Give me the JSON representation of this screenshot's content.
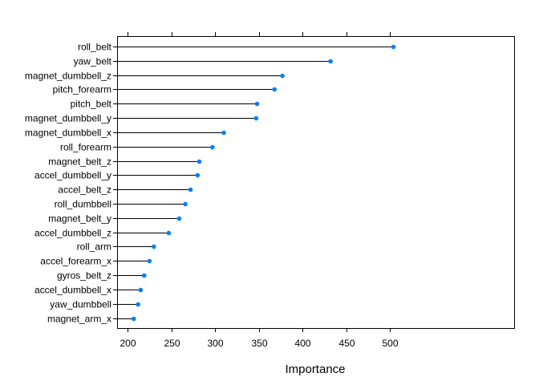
{
  "chart_data": {
    "type": "dot",
    "title": "",
    "xlabel": "Importance",
    "ylabel": "",
    "xlim": [
      188,
      642
    ],
    "xticks": [
      200,
      250,
      300,
      350,
      400,
      450,
      500
    ],
    "xtick_labels": [
      "200",
      "250",
      "300",
      "350",
      "400",
      "450",
      "500"
    ],
    "grid": false,
    "marker_color": "#0080ff",
    "line_color": "#000000",
    "categories": [
      "roll_belt",
      "yaw_belt",
      "magnet_dumbbell_z",
      "pitch_forearm",
      "pitch_belt",
      "magnet_dumbbell_y",
      "magnet_dumbbell_x",
      "roll_forearm",
      "magnet_belt_z",
      "accel_dumbbell_y",
      "accel_belt_z",
      "roll_dumbbell",
      "magnet_belt_y",
      "accel_dumbbell_z",
      "roll_arm",
      "accel_forearm_x",
      "gyros_belt_z",
      "accel_dumbbell_x",
      "yaw_dumbbell",
      "magnet_arm_x"
    ],
    "values": [
      504,
      432,
      377,
      368,
      348,
      347,
      310,
      297,
      282,
      280,
      272,
      266,
      259,
      247,
      230,
      225,
      219,
      215,
      212,
      207
    ]
  }
}
